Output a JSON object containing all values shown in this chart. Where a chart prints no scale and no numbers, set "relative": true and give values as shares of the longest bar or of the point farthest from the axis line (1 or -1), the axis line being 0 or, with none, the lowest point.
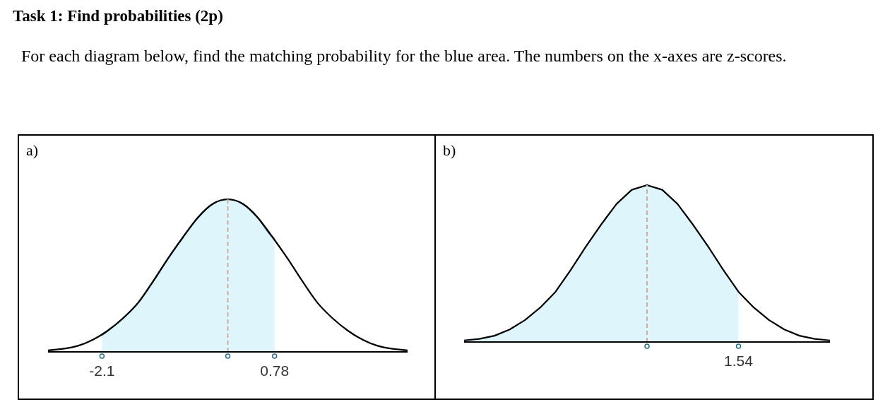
{
  "chart_data": [
    {
      "type": "other",
      "title": "Task 1: Find probabilities (2p)",
      "annotations": [
        "For each diagram below, find the matching probability for the blue area. The numbers on the x-axes are z-scores."
      ]
    },
    {
      "type": "area",
      "title": "a)",
      "relative": true,
      "xlim": [
        -3,
        3
      ],
      "xticks": [
        -2.1,
        {
          "value": 0,
          "label": null
        },
        0.78
      ],
      "series": [
        {
          "type": "line",
          "color": "#000000",
          "x": [
            -3,
            -2.75,
            -2.5,
            -2.25,
            -2,
            -1.75,
            -1.5,
            -1.25,
            -1,
            -0.75,
            -0.5,
            -0.25,
            0,
            0.25,
            0.5,
            0.75,
            1,
            1.25,
            1.5,
            1.75,
            2,
            2.25,
            2.5,
            2.75,
            3
          ],
          "values": [
            0.01,
            0.02,
            0.04,
            0.08,
            0.14,
            0.22,
            0.32,
            0.46,
            0.61,
            0.75,
            0.88,
            0.97,
            1,
            0.97,
            0.88,
            0.75,
            0.61,
            0.46,
            0.32,
            0.22,
            0.14,
            0.08,
            0.04,
            0.02,
            0.01
          ]
        },
        {
          "type": "area",
          "color": "#dff5fc",
          "x": [
            -2.1,
            -2,
            -1.75,
            -1.5,
            -1.25,
            -1,
            -0.75,
            -0.5,
            -0.25,
            0,
            0.25,
            0.5,
            0.75,
            0.78
          ],
          "values": [
            0.11,
            0.14,
            0.22,
            0.32,
            0.46,
            0.61,
            0.75,
            0.88,
            0.97,
            1,
            0.97,
            0.88,
            0.75,
            0.74
          ]
        }
      ],
      "ref_lines": [
        {
          "axis": "x",
          "value": 0,
          "color": "#d4aa98",
          "line_style": "dashed"
        }
      ]
    },
    {
      "type": "line",
      "title": "b)",
      "relative": true,
      "annotations": [
        "1.54"
      ],
      "categories": [
        null,
        null,
        null,
        null,
        null,
        null,
        null,
        null,
        null,
        null,
        null,
        null,
        null,
        null,
        null,
        null,
        null,
        null,
        null,
        null,
        null,
        null,
        null,
        null,
        null
      ],
      "series": [
        {
          "color": "#000000",
          "values": [
            0.01,
            0.02,
            0.04,
            0.08,
            0.14,
            0.22,
            0.32,
            0.46,
            0.61,
            0.75,
            0.88,
            0.97,
            1,
            0.97,
            0.88,
            0.75,
            0.61,
            0.46,
            0.32,
            0.22,
            0.14,
            0.08,
            0.04,
            0.02,
            0.01
          ],
          "lower": [
            0,
            0,
            0,
            0,
            0,
            0,
            0,
            0,
            0,
            0,
            0,
            0,
            0,
            0,
            0,
            0,
            0,
            0,
            0,
            null,
            null,
            null,
            null,
            null,
            null
          ],
          "upper": [
            0.01,
            0.02,
            0.04,
            0.08,
            0.14,
            0.22,
            0.32,
            0.46,
            0.61,
            0.75,
            0.88,
            0.97,
            1,
            0.97,
            0.88,
            0.75,
            0.61,
            0.46,
            0.32,
            null,
            null,
            null,
            null,
            null,
            null
          ]
        }
      ],
      "ref_lines": [
        {
          "axis": "x",
          "color": "#d4aa98",
          "line_style": "dashed"
        }
      ]
    }
  ]
}
